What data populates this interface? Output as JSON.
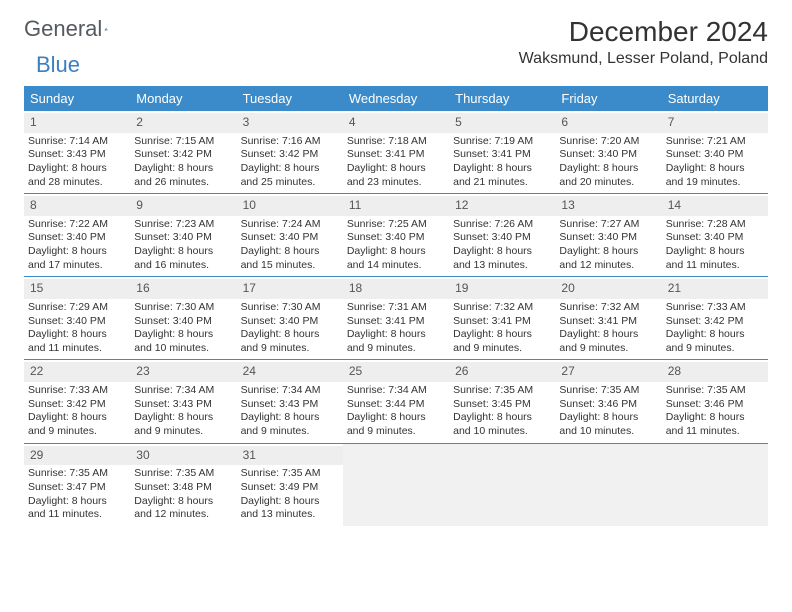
{
  "logo": {
    "text1": "General",
    "text2": "Blue"
  },
  "title": "December 2024",
  "location": "Waksmund, Lesser Poland, Poland",
  "colors": {
    "header_bg": "#3b8bca",
    "header_text": "#ffffff",
    "daynum_bg": "#eeeeee",
    "rule": "#3b8bca",
    "empty_bg": "#f1f1f1",
    "body_text": "#333333"
  },
  "dow": [
    "Sunday",
    "Monday",
    "Tuesday",
    "Wednesday",
    "Thursday",
    "Friday",
    "Saturday"
  ],
  "weeks": [
    [
      {
        "n": "1",
        "sunrise": "7:14 AM",
        "sunset": "3:43 PM",
        "dl": "8 hours and 28 minutes."
      },
      {
        "n": "2",
        "sunrise": "7:15 AM",
        "sunset": "3:42 PM",
        "dl": "8 hours and 26 minutes."
      },
      {
        "n": "3",
        "sunrise": "7:16 AM",
        "sunset": "3:42 PM",
        "dl": "8 hours and 25 minutes."
      },
      {
        "n": "4",
        "sunrise": "7:18 AM",
        "sunset": "3:41 PM",
        "dl": "8 hours and 23 minutes."
      },
      {
        "n": "5",
        "sunrise": "7:19 AM",
        "sunset": "3:41 PM",
        "dl": "8 hours and 21 minutes."
      },
      {
        "n": "6",
        "sunrise": "7:20 AM",
        "sunset": "3:40 PM",
        "dl": "8 hours and 20 minutes."
      },
      {
        "n": "7",
        "sunrise": "7:21 AM",
        "sunset": "3:40 PM",
        "dl": "8 hours and 19 minutes."
      }
    ],
    [
      {
        "n": "8",
        "sunrise": "7:22 AM",
        "sunset": "3:40 PM",
        "dl": "8 hours and 17 minutes."
      },
      {
        "n": "9",
        "sunrise": "7:23 AM",
        "sunset": "3:40 PM",
        "dl": "8 hours and 16 minutes."
      },
      {
        "n": "10",
        "sunrise": "7:24 AM",
        "sunset": "3:40 PM",
        "dl": "8 hours and 15 minutes."
      },
      {
        "n": "11",
        "sunrise": "7:25 AM",
        "sunset": "3:40 PM",
        "dl": "8 hours and 14 minutes."
      },
      {
        "n": "12",
        "sunrise": "7:26 AM",
        "sunset": "3:40 PM",
        "dl": "8 hours and 13 minutes."
      },
      {
        "n": "13",
        "sunrise": "7:27 AM",
        "sunset": "3:40 PM",
        "dl": "8 hours and 12 minutes."
      },
      {
        "n": "14",
        "sunrise": "7:28 AM",
        "sunset": "3:40 PM",
        "dl": "8 hours and 11 minutes."
      }
    ],
    [
      {
        "n": "15",
        "sunrise": "7:29 AM",
        "sunset": "3:40 PM",
        "dl": "8 hours and 11 minutes."
      },
      {
        "n": "16",
        "sunrise": "7:30 AM",
        "sunset": "3:40 PM",
        "dl": "8 hours and 10 minutes."
      },
      {
        "n": "17",
        "sunrise": "7:30 AM",
        "sunset": "3:40 PM",
        "dl": "8 hours and 9 minutes."
      },
      {
        "n": "18",
        "sunrise": "7:31 AM",
        "sunset": "3:41 PM",
        "dl": "8 hours and 9 minutes."
      },
      {
        "n": "19",
        "sunrise": "7:32 AM",
        "sunset": "3:41 PM",
        "dl": "8 hours and 9 minutes."
      },
      {
        "n": "20",
        "sunrise": "7:32 AM",
        "sunset": "3:41 PM",
        "dl": "8 hours and 9 minutes."
      },
      {
        "n": "21",
        "sunrise": "7:33 AM",
        "sunset": "3:42 PM",
        "dl": "8 hours and 9 minutes."
      }
    ],
    [
      {
        "n": "22",
        "sunrise": "7:33 AM",
        "sunset": "3:42 PM",
        "dl": "8 hours and 9 minutes."
      },
      {
        "n": "23",
        "sunrise": "7:34 AM",
        "sunset": "3:43 PM",
        "dl": "8 hours and 9 minutes."
      },
      {
        "n": "24",
        "sunrise": "7:34 AM",
        "sunset": "3:43 PM",
        "dl": "8 hours and 9 minutes."
      },
      {
        "n": "25",
        "sunrise": "7:34 AM",
        "sunset": "3:44 PM",
        "dl": "8 hours and 9 minutes."
      },
      {
        "n": "26",
        "sunrise": "7:35 AM",
        "sunset": "3:45 PM",
        "dl": "8 hours and 10 minutes."
      },
      {
        "n": "27",
        "sunrise": "7:35 AM",
        "sunset": "3:46 PM",
        "dl": "8 hours and 10 minutes."
      },
      {
        "n": "28",
        "sunrise": "7:35 AM",
        "sunset": "3:46 PM",
        "dl": "8 hours and 11 minutes."
      }
    ],
    [
      {
        "n": "29",
        "sunrise": "7:35 AM",
        "sunset": "3:47 PM",
        "dl": "8 hours and 11 minutes."
      },
      {
        "n": "30",
        "sunrise": "7:35 AM",
        "sunset": "3:48 PM",
        "dl": "8 hours and 12 minutes."
      },
      {
        "n": "31",
        "sunrise": "7:35 AM",
        "sunset": "3:49 PM",
        "dl": "8 hours and 13 minutes."
      },
      {
        "empty": true
      },
      {
        "empty": true
      },
      {
        "empty": true
      },
      {
        "empty": true
      }
    ]
  ],
  "labels": {
    "sunrise": "Sunrise: ",
    "sunset": "Sunset: ",
    "daylight": "Daylight: "
  }
}
